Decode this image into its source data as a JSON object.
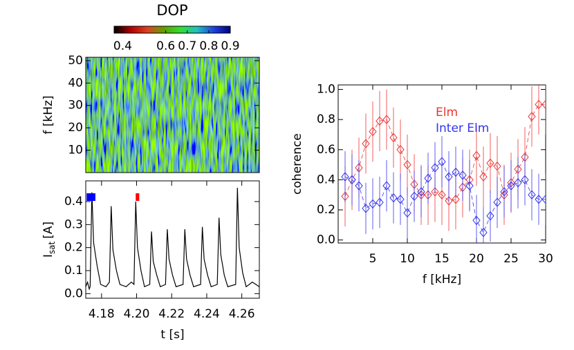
{
  "chart_data": [
    {
      "type": "heatmap",
      "title": "DOP",
      "ylabel": "f [kHz]",
      "ylim": [
        0,
        51.5
      ],
      "yticks": [
        10,
        20,
        30,
        40,
        50
      ],
      "colorbar": {
        "lim": [
          0.36,
          0.9
        ],
        "ticks": [
          0.4,
          0.6,
          0.7,
          0.8,
          0.9
        ],
        "colors": [
          "#000000",
          "#b00000",
          "#e04020",
          "#60a000",
          "#30e030",
          "#20c0c0",
          "#2040e0",
          "#000080"
        ]
      }
    },
    {
      "type": "line",
      "xlabel": "t [s]",
      "ylabel": "I",
      "ylabel_sub": "sat",
      "ylabel_unit": "[A]",
      "xlim": [
        4.171,
        4.27
      ],
      "ylim": [
        -0.02,
        0.49
      ],
      "xticks": [
        4.18,
        {
          "value": 4.2,
          "label": "4.20"
        },
        4.22,
        4.24,
        4.26
      ],
      "yticks": [
        {
          "value": 0,
          "label": "0.0"
        },
        0.1,
        0.2,
        0.3,
        0.4
      ],
      "color": "#000000",
      "x": [
        4.171,
        4.172,
        4.173,
        4.1735,
        4.1745,
        4.1755,
        4.1775,
        4.1795,
        4.1825,
        4.1845,
        4.1855,
        4.1865,
        4.1885,
        4.1905,
        4.194,
        4.197,
        4.1985,
        4.1995,
        4.2005,
        4.2025,
        4.2045,
        4.2075,
        4.2085,
        4.2095,
        4.2115,
        4.2135,
        4.2165,
        4.2175,
        4.2185,
        4.2205,
        4.2225,
        4.2265,
        4.2275,
        4.2285,
        4.2305,
        4.2325,
        4.2365,
        4.2375,
        4.2385,
        4.2405,
        4.2425,
        4.246,
        4.247,
        4.248,
        4.25,
        4.252,
        4.2565,
        4.2575,
        4.2585,
        4.2605,
        4.2625,
        4.266,
        4.27
      ],
      "values": [
        0.03,
        0.05,
        0.02,
        0.03,
        0.44,
        0.22,
        0.12,
        0.04,
        0.03,
        0.05,
        0.38,
        0.19,
        0.1,
        0.04,
        0.03,
        0.05,
        0.04,
        0.4,
        0.2,
        0.1,
        0.03,
        0.04,
        0.27,
        0.14,
        0.08,
        0.03,
        0.04,
        0.28,
        0.15,
        0.08,
        0.03,
        0.04,
        0.28,
        0.15,
        0.08,
        0.03,
        0.04,
        0.29,
        0.15,
        0.08,
        0.03,
        0.04,
        0.33,
        0.17,
        0.08,
        0.03,
        0.04,
        0.46,
        0.2,
        0.09,
        0.03,
        0.05,
        0.03
      ],
      "windows": [
        {
          "color": "#0000ff",
          "x": [
            4.1715,
            4.1765
          ],
          "y": [
            0.403,
            0.436
          ]
        },
        {
          "color": "#ff0000",
          "x": [
            4.1995,
            4.2015
          ],
          "y": [
            0.403,
            0.436
          ]
        }
      ]
    },
    {
      "type": "errorbar",
      "xlabel": "f [kHz]",
      "ylabel": "coherence",
      "xlim": [
        0,
        30
      ],
      "ylim": [
        -0.02,
        1.03
      ],
      "xticks": [
        5,
        10,
        15,
        20,
        25,
        30
      ],
      "yticks": [
        {
          "value": 0,
          "label": "0.0"
        },
        0.2,
        0.4,
        0.6,
        0.8,
        {
          "value": 1,
          "label": "1.0"
        }
      ],
      "x": [
        1,
        2,
        3,
        4,
        5,
        6,
        7,
        8,
        9,
        10,
        11,
        12,
        13,
        14,
        15,
        16,
        17,
        18,
        19,
        20,
        21,
        22,
        23,
        24,
        25,
        26,
        27,
        28,
        29,
        30
      ],
      "series": [
        {
          "name": "Elm",
          "color": "#ee3333",
          "values": [
            0.29,
            0.4,
            0.48,
            0.64,
            0.72,
            0.79,
            0.8,
            0.68,
            0.6,
            0.5,
            0.37,
            0.3,
            0.3,
            0.32,
            0.3,
            0.26,
            0.27,
            0.35,
            0.4,
            0.56,
            0.42,
            0.51,
            0.49,
            0.3,
            0.38,
            0.47,
            0.55,
            0.82,
            0.9,
            0.9
          ],
          "errors": [
            0.2,
            0.2,
            0.2,
            0.2,
            0.2,
            0.2,
            0.2,
            0.2,
            0.2,
            0.2,
            0.2,
            0.2,
            0.2,
            0.2,
            0.2,
            0.2,
            0.2,
            0.2,
            0.2,
            0.2,
            0.2,
            0.2,
            0.2,
            0.2,
            0.2,
            0.2,
            0.2,
            0.2,
            0.2,
            0.2
          ]
        },
        {
          "name": "Inter Elm",
          "color": "#3333ee",
          "values": [
            0.42,
            0.4,
            0.36,
            0.21,
            0.24,
            0.25,
            0.36,
            0.28,
            0.27,
            0.18,
            0.29,
            0.32,
            0.41,
            0.48,
            0.52,
            0.42,
            0.45,
            0.43,
            0.36,
            0.13,
            0.05,
            0.16,
            0.25,
            0.32,
            0.36,
            0.38,
            0.4,
            0.3,
            0.27,
            0.27
          ],
          "errors": [
            0.17,
            0.17,
            0.17,
            0.17,
            0.17,
            0.17,
            0.17,
            0.17,
            0.17,
            0.17,
            0.17,
            0.17,
            0.17,
            0.17,
            0.17,
            0.17,
            0.17,
            0.17,
            0.17,
            0.17,
            0.17,
            0.17,
            0.17,
            0.17,
            0.17,
            0.17,
            0.17,
            0.17,
            0.17,
            0.17
          ]
        }
      ]
    }
  ]
}
